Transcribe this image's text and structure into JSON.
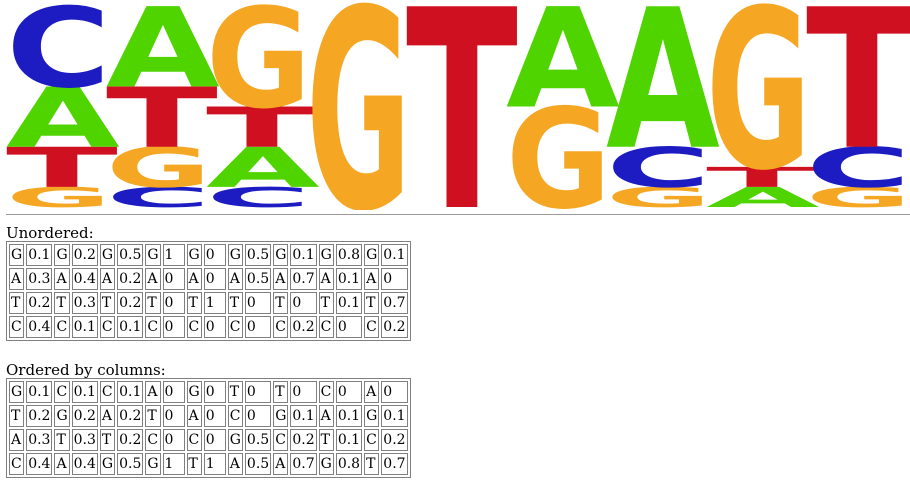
{
  "logo": {
    "colors": {
      "A": "#4fd400",
      "C": "#1c1cc2",
      "G": "#f5a623",
      "T": "#cf1020"
    },
    "columns": [
      [
        {
          "base": "G",
          "p": 0.1
        },
        {
          "base": "T",
          "p": 0.2
        },
        {
          "base": "A",
          "p": 0.3
        },
        {
          "base": "C",
          "p": 0.4
        }
      ],
      [
        {
          "base": "C",
          "p": 0.1
        },
        {
          "base": "G",
          "p": 0.2
        },
        {
          "base": "T",
          "p": 0.3
        },
        {
          "base": "A",
          "p": 0.4
        }
      ],
      [
        {
          "base": "C",
          "p": 0.1
        },
        {
          "base": "A",
          "p": 0.2
        },
        {
          "base": "T",
          "p": 0.2
        },
        {
          "base": "G",
          "p": 0.5
        }
      ],
      [
        {
          "base": "G",
          "p": 1
        }
      ],
      [
        {
          "base": "T",
          "p": 1
        }
      ],
      [
        {
          "base": "G",
          "p": 0.5
        },
        {
          "base": "A",
          "p": 0.5
        }
      ],
      [
        {
          "base": "G",
          "p": 0.1
        },
        {
          "base": "C",
          "p": 0.2
        },
        {
          "base": "A",
          "p": 0.7
        }
      ],
      [
        {
          "base": "A",
          "p": 0.1
        },
        {
          "base": "T",
          "p": 0.1
        },
        {
          "base": "G",
          "p": 0.8
        }
      ],
      [
        {
          "base": "G",
          "p": 0.1
        },
        {
          "base": "C",
          "p": 0.2
        },
        {
          "base": "T",
          "p": 0.7
        }
      ]
    ]
  },
  "unordered": {
    "heading": "Unordered:",
    "rows": [
      [
        [
          "G",
          "0.1"
        ],
        [
          "G",
          "0.2"
        ],
        [
          "G",
          "0.5"
        ],
        [
          "G",
          "1"
        ],
        [
          "G",
          "0"
        ],
        [
          "G",
          "0.5"
        ],
        [
          "G",
          "0.1"
        ],
        [
          "G",
          "0.8"
        ],
        [
          "G",
          "0.1"
        ]
      ],
      [
        [
          "A",
          "0.3"
        ],
        [
          "A",
          "0.4"
        ],
        [
          "A",
          "0.2"
        ],
        [
          "A",
          "0"
        ],
        [
          "A",
          "0"
        ],
        [
          "A",
          "0.5"
        ],
        [
          "A",
          "0.7"
        ],
        [
          "A",
          "0.1"
        ],
        [
          "A",
          "0"
        ]
      ],
      [
        [
          "T",
          "0.2"
        ],
        [
          "T",
          "0.3"
        ],
        [
          "T",
          "0.2"
        ],
        [
          "T",
          "0"
        ],
        [
          "T",
          "1"
        ],
        [
          "T",
          "0"
        ],
        [
          "T",
          "0"
        ],
        [
          "T",
          "0.1"
        ],
        [
          "T",
          "0.7"
        ]
      ],
      [
        [
          "C",
          "0.4"
        ],
        [
          "C",
          "0.1"
        ],
        [
          "C",
          "0.1"
        ],
        [
          "C",
          "0"
        ],
        [
          "C",
          "0"
        ],
        [
          "C",
          "0"
        ],
        [
          "C",
          "0.2"
        ],
        [
          "C",
          "0"
        ],
        [
          "C",
          "0.2"
        ]
      ]
    ]
  },
  "ordered": {
    "heading": "Ordered by columns:",
    "rows": [
      [
        [
          "G",
          "0.1"
        ],
        [
          "C",
          "0.1"
        ],
        [
          "C",
          "0.1"
        ],
        [
          "A",
          "0"
        ],
        [
          "G",
          "0"
        ],
        [
          "T",
          "0"
        ],
        [
          "T",
          "0"
        ],
        [
          "C",
          "0"
        ],
        [
          "A",
          "0"
        ]
      ],
      [
        [
          "T",
          "0.2"
        ],
        [
          "G",
          "0.2"
        ],
        [
          "A",
          "0.2"
        ],
        [
          "T",
          "0"
        ],
        [
          "A",
          "0"
        ],
        [
          "C",
          "0"
        ],
        [
          "G",
          "0.1"
        ],
        [
          "A",
          "0.1"
        ],
        [
          "G",
          "0.1"
        ]
      ],
      [
        [
          "A",
          "0.3"
        ],
        [
          "T",
          "0.3"
        ],
        [
          "T",
          "0.2"
        ],
        [
          "C",
          "0"
        ],
        [
          "C",
          "0"
        ],
        [
          "G",
          "0.5"
        ],
        [
          "C",
          "0.2"
        ],
        [
          "T",
          "0.1"
        ],
        [
          "C",
          "0.2"
        ]
      ],
      [
        [
          "C",
          "0.4"
        ],
        [
          "A",
          "0.4"
        ],
        [
          "G",
          "0.5"
        ],
        [
          "G",
          "1"
        ],
        [
          "T",
          "1"
        ],
        [
          "A",
          "0.5"
        ],
        [
          "A",
          "0.7"
        ],
        [
          "G",
          "0.8"
        ],
        [
          "T",
          "0.7"
        ]
      ]
    ]
  }
}
